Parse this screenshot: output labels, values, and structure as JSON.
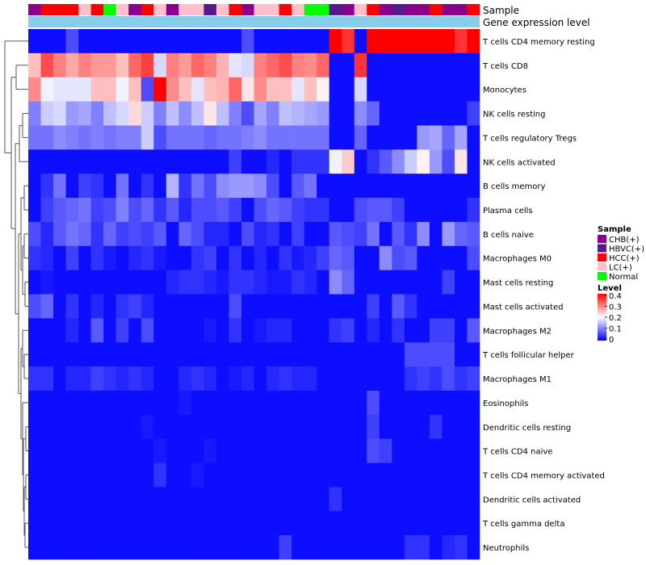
{
  "chart_data": {
    "type": "heatmap",
    "annotations": {
      "sample_label": "Sample",
      "gene_label": "Gene expression level"
    },
    "rows": [
      "T cells CD4 memory resting",
      "T cells CD8",
      "Monocytes",
      "NK cells resting",
      "T cells regulatory  Tregs",
      "NK cells activated",
      "B cells memory",
      "Plasma cells",
      "B cells naive",
      "Macrophages M0",
      "Mast cells resting",
      "Mast cells activated",
      "Macrophages M2",
      "T cells follicular helper",
      "Macrophages M1",
      "Eosinophils",
      "Dendritic cells resting",
      "T cells CD4 naive",
      "T cells CD4 memory activated",
      "Dendritic cells activated",
      "T cells gamma delta",
      "Neutrophils"
    ],
    "samples": [
      "CHB(+)",
      "HCC(+)",
      "HCC(+)",
      "HCC(+)",
      "LC(+)",
      "HCC(+)",
      "Normal",
      "LC(+)",
      "CHB(+)",
      "HCC(+)",
      "LC(+)",
      "CHB(+)",
      "LC(+)",
      "LC(+)",
      "HBVC(+)",
      "LC(+)",
      "HCC(+)",
      "CHB(+)",
      "LC(+)",
      "LC(+)",
      "HCC(+)",
      "LC(+)",
      "Normal",
      "Normal",
      "HBVC(+)",
      "CHB(+)",
      "LC(+)",
      "HCC(+)",
      "CHB(+)",
      "HBVC(+)",
      "CHB(+)",
      "CHB(+)",
      "HCC(+)",
      "CHB(+)",
      "CHB(+)",
      "HCC(+)"
    ],
    "values": [
      [
        0.01,
        0.01,
        0.01,
        0.06,
        0.01,
        0.01,
        0.01,
        0.01,
        0.01,
        0.01,
        0.01,
        0.01,
        0.01,
        0.01,
        0.01,
        0.01,
        0.01,
        0.06,
        0.01,
        0.01,
        0.01,
        0.01,
        0.01,
        0.01,
        0.4,
        0.36,
        0.01,
        0.4,
        0.4,
        0.4,
        0.4,
        0.4,
        0.4,
        0.4,
        0.36,
        0.4
      ],
      [
        0.25,
        0.34,
        0.3,
        0.27,
        0.3,
        0.28,
        0.28,
        0.25,
        0.32,
        0.35,
        0.17,
        0.3,
        0.28,
        0.32,
        0.3,
        0.26,
        0.18,
        0.17,
        0.3,
        0.32,
        0.34,
        0.3,
        0.29,
        0.32,
        0.01,
        0.01,
        0.36,
        0.01,
        0.01,
        0.01,
        0.01,
        0.01,
        0.01,
        0.01,
        0.01,
        0.01
      ],
      [
        0.29,
        0.19,
        0.18,
        0.18,
        0.18,
        0.25,
        0.25,
        0.19,
        0.25,
        0.06,
        0.4,
        0.29,
        0.25,
        0.18,
        0.25,
        0.26,
        0.32,
        0.22,
        0.29,
        0.25,
        0.25,
        0.18,
        0.25,
        0.21,
        0.01,
        0.01,
        0.17,
        0.01,
        0.01,
        0.01,
        0.01,
        0.01,
        0.01,
        0.01,
        0.01,
        0.01
      ],
      [
        0.1,
        0.16,
        0.17,
        0.12,
        0.13,
        0.1,
        0.15,
        0.17,
        0.23,
        0.16,
        0.1,
        0.15,
        0.11,
        0.15,
        0.22,
        0.15,
        0.1,
        0.06,
        0.13,
        0.1,
        0.15,
        0.14,
        0.13,
        0.12,
        0.01,
        0.01,
        0.11,
        0.08,
        0.01,
        0.01,
        0.01,
        0.01,
        0.01,
        0.01,
        0.01,
        0.05
      ],
      [
        0.09,
        0.09,
        0.11,
        0.1,
        0.09,
        0.1,
        0.09,
        0.1,
        0.1,
        0.16,
        0.06,
        0.09,
        0.09,
        0.09,
        0.08,
        0.09,
        0.09,
        0.1,
        0.11,
        0.09,
        0.09,
        0.09,
        0.09,
        0.09,
        0.01,
        0.01,
        0.08,
        0.01,
        0.01,
        0.01,
        0.01,
        0.12,
        0.13,
        0.08,
        0.13,
        0.01
      ],
      [
        0.01,
        0.01,
        0.01,
        0.01,
        0.01,
        0.01,
        0.01,
        0.01,
        0.01,
        0.01,
        0.01,
        0.01,
        0.01,
        0.01,
        0.01,
        0.01,
        0.05,
        0.01,
        0.01,
        0.03,
        0.01,
        0.04,
        0.04,
        0.04,
        0.19,
        0.24,
        0.01,
        0.04,
        0.07,
        0.11,
        0.16,
        0.21,
        0.12,
        0.06,
        0.22,
        0.01
      ],
      [
        0.01,
        0.04,
        0.09,
        0.01,
        0.05,
        0.04,
        0.01,
        0.09,
        0.01,
        0.04,
        0.01,
        0.14,
        0.04,
        0.09,
        0.06,
        0.11,
        0.12,
        0.12,
        0.11,
        0.06,
        0.01,
        0.07,
        0.09,
        0.01,
        0.01,
        0.01,
        0.01,
        0.01,
        0.01,
        0.01,
        0.01,
        0.01,
        0.01,
        0.01,
        0.01,
        0.01
      ],
      [
        0.01,
        0.05,
        0.07,
        0.08,
        0.09,
        0.05,
        0.06,
        0.1,
        0.06,
        0.08,
        0.04,
        0.07,
        0.03,
        0.06,
        0.06,
        0.07,
        0.05,
        0.01,
        0.06,
        0.08,
        0.07,
        0.05,
        0.04,
        0.04,
        0.01,
        0.01,
        0.06,
        0.07,
        0.07,
        0.05,
        0.01,
        0.01,
        0.01,
        0.01,
        0.01,
        0.04
      ],
      [
        0.06,
        0.03,
        0.07,
        0.09,
        0.08,
        0.04,
        0.08,
        0.05,
        0.06,
        0.05,
        0.07,
        0.01,
        0.08,
        0.06,
        0.03,
        0.03,
        0.01,
        0.06,
        0.03,
        0.04,
        0.01,
        0.05,
        0.01,
        0.01,
        0.07,
        0.06,
        0.05,
        0.09,
        0.01,
        0.07,
        0.04,
        0.11,
        0.01,
        0.12,
        0.08,
        0.07
      ],
      [
        0.04,
        0.03,
        0.01,
        0.05,
        0.01,
        0.04,
        0.02,
        0.01,
        0.03,
        0.04,
        0.02,
        0.01,
        0.01,
        0.04,
        0.05,
        0.01,
        0.04,
        0.01,
        0.03,
        0.01,
        0.04,
        0.02,
        0.03,
        0.05,
        0.08,
        0.07,
        0.01,
        0.01,
        0.11,
        0.06,
        0.07,
        0.01,
        0.01,
        0.01,
        0.01,
        0.06
      ],
      [
        0.01,
        0.02,
        0.01,
        0.01,
        0.01,
        0.01,
        0.01,
        0.01,
        0.01,
        0.01,
        0.01,
        0.03,
        0.04,
        0.04,
        0.03,
        0.02,
        0.04,
        0.04,
        0.03,
        0.02,
        0.02,
        0.04,
        0.03,
        0.01,
        0.11,
        0.08,
        0.01,
        0.01,
        0.01,
        0.01,
        0.01,
        0.01,
        0.01,
        0.05,
        0.01,
        0.01
      ],
      [
        0.06,
        0.08,
        0.01,
        0.04,
        0.01,
        0.03,
        0.01,
        0.04,
        0.05,
        0.03,
        0.01,
        0.01,
        0.01,
        0.01,
        0.01,
        0.01,
        0.06,
        0.01,
        0.01,
        0.01,
        0.01,
        0.01,
        0.01,
        0.01,
        0.01,
        0.01,
        0.01,
        0.05,
        0.01,
        0.07,
        0.04,
        0.01,
        0.01,
        0.01,
        0.01,
        0.01
      ],
      [
        0.01,
        0.01,
        0.01,
        0.03,
        0.01,
        0.07,
        0.01,
        0.05,
        0.01,
        0.06,
        0.01,
        0.01,
        0.01,
        0.01,
        0.02,
        0.01,
        0.04,
        0.01,
        0.02,
        0.03,
        0.03,
        0.01,
        0.01,
        0.01,
        0.04,
        0.05,
        0.01,
        0.03,
        0.01,
        0.04,
        0.01,
        0.01,
        0.05,
        0.05,
        0.01,
        0.07
      ],
      [
        0.01,
        0.01,
        0.01,
        0.01,
        0.01,
        0.01,
        0.01,
        0.01,
        0.01,
        0.01,
        0.01,
        0.01,
        0.01,
        0.01,
        0.01,
        0.01,
        0.01,
        0.01,
        0.01,
        0.01,
        0.01,
        0.01,
        0.01,
        0.01,
        0.01,
        0.01,
        0.01,
        0.01,
        0.01,
        0.01,
        0.06,
        0.06,
        0.06,
        0.06,
        0.01,
        0.01
      ],
      [
        0.04,
        0.04,
        0.01,
        0.03,
        0.03,
        0.05,
        0.04,
        0.03,
        0.04,
        0.03,
        0.01,
        0.01,
        0.03,
        0.04,
        0.03,
        0.01,
        0.02,
        0.03,
        0.01,
        0.03,
        0.04,
        0.03,
        0.03,
        0.01,
        0.01,
        0.01,
        0.01,
        0.01,
        0.01,
        0.01,
        0.04,
        0.05,
        0.04,
        0.06,
        0.04,
        0.05
      ],
      [
        0.01,
        0.01,
        0.01,
        0.01,
        0.01,
        0.01,
        0.01,
        0.01,
        0.01,
        0.01,
        0.01,
        0.01,
        0.02,
        0.01,
        0.01,
        0.01,
        0.01,
        0.01,
        0.01,
        0.01,
        0.01,
        0.01,
        0.01,
        0.01,
        0.01,
        0.01,
        0.01,
        0.06,
        0.01,
        0.01,
        0.01,
        0.01,
        0.01,
        0.01,
        0.01,
        0.01
      ],
      [
        0.01,
        0.01,
        0.01,
        0.01,
        0.01,
        0.01,
        0.01,
        0.01,
        0.01,
        0.02,
        0.01,
        0.01,
        0.01,
        0.01,
        0.01,
        0.01,
        0.01,
        0.01,
        0.01,
        0.01,
        0.01,
        0.01,
        0.01,
        0.01,
        0.01,
        0.01,
        0.01,
        0.05,
        0.01,
        0.01,
        0.01,
        0.01,
        0.04,
        0.01,
        0.01,
        0.01
      ],
      [
        0.01,
        0.01,
        0.01,
        0.01,
        0.01,
        0.01,
        0.01,
        0.01,
        0.01,
        0.01,
        0.02,
        0.01,
        0.01,
        0.01,
        0.02,
        0.01,
        0.01,
        0.01,
        0.01,
        0.01,
        0.01,
        0.01,
        0.01,
        0.01,
        0.01,
        0.01,
        0.01,
        0.06,
        0.05,
        0.01,
        0.01,
        0.01,
        0.01,
        0.01,
        0.01,
        0.01
      ],
      [
        0.01,
        0.01,
        0.01,
        0.01,
        0.01,
        0.01,
        0.01,
        0.01,
        0.01,
        0.01,
        0.04,
        0.01,
        0.01,
        0.02,
        0.01,
        0.01,
        0.01,
        0.01,
        0.01,
        0.01,
        0.01,
        0.01,
        0.01,
        0.01,
        0.01,
        0.01,
        0.01,
        0.01,
        0.01,
        0.01,
        0.01,
        0.01,
        0.01,
        0.01,
        0.01,
        0.01
      ],
      [
        0.01,
        0.01,
        0.01,
        0.01,
        0.01,
        0.01,
        0.01,
        0.01,
        0.01,
        0.01,
        0.01,
        0.01,
        0.01,
        0.01,
        0.01,
        0.01,
        0.01,
        0.01,
        0.01,
        0.01,
        0.01,
        0.01,
        0.01,
        0.01,
        0.04,
        0.01,
        0.01,
        0.01,
        0.01,
        0.01,
        0.01,
        0.01,
        0.01,
        0.01,
        0.01,
        0.01
      ],
      [
        0.01,
        0.01,
        0.01,
        0.01,
        0.01,
        0.01,
        0.01,
        0.01,
        0.01,
        0.01,
        0.01,
        0.01,
        0.01,
        0.01,
        0.01,
        0.01,
        0.01,
        0.01,
        0.01,
        0.01,
        0.01,
        0.01,
        0.01,
        0.01,
        0.01,
        0.01,
        0.01,
        0.01,
        0.01,
        0.01,
        0.01,
        0.01,
        0.01,
        0.01,
        0.01,
        0.01
      ],
      [
        0.01,
        0.01,
        0.01,
        0.01,
        0.01,
        0.01,
        0.01,
        0.01,
        0.01,
        0.01,
        0.01,
        0.01,
        0.01,
        0.01,
        0.01,
        0.01,
        0.01,
        0.01,
        0.01,
        0.01,
        0.05,
        0.01,
        0.01,
        0.01,
        0.01,
        0.01,
        0.01,
        0.01,
        0.01,
        0.01,
        0.04,
        0.04,
        0.01,
        0.03,
        0.04,
        0.01
      ]
    ],
    "legend": {
      "sample_title": "Sample",
      "groups": [
        {
          "name": "CHB(+)",
          "color": "#8b008b"
        },
        {
          "name": "HBVC(+)",
          "color": "#551a8b"
        },
        {
          "name": "HCC(+)",
          "color": "#ff0000"
        },
        {
          "name": "LC(+)",
          "color": "#ffc0cb"
        },
        {
          "name": "Normal",
          "color": "#00ff00"
        }
      ],
      "level_title": "Level",
      "ticks": [
        "0.4",
        "0.3",
        "0.2",
        "0.1",
        "0"
      ],
      "tick_values": [
        0.4,
        0.3,
        0.2,
        0.1,
        0
      ],
      "range": [
        0,
        0.4
      ]
    },
    "colors": {
      "low": "#0000ff",
      "mid": "#ffffff",
      "high": "#ff0000",
      "gene_bar": "#87ceeb"
    }
  }
}
